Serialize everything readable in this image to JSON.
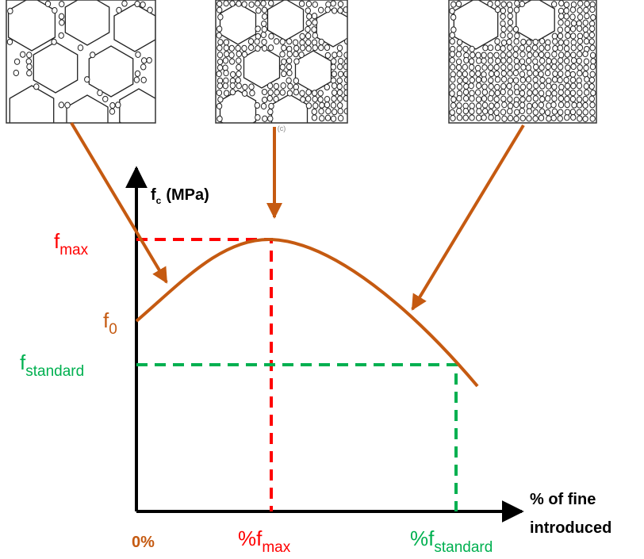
{
  "caption": "(c)",
  "y_axis_label": {
    "main": "f",
    "sub": "c",
    "suffix": "(MPa)"
  },
  "x_axis_label": [
    "% of fine",
    "introduced"
  ],
  "y_labels": {
    "fmax": {
      "main": "f",
      "sub": "max"
    },
    "f0": {
      "main": "f",
      "sub": "0"
    },
    "fstandard": {
      "main": "f",
      "sub": "standard"
    }
  },
  "x_labels": {
    "zero": {
      "main": "0%"
    },
    "pfmax": {
      "main": "%f",
      "sub": "max"
    },
    "pfstandard": {
      "main": "%f",
      "sub": "standard"
    }
  }
}
